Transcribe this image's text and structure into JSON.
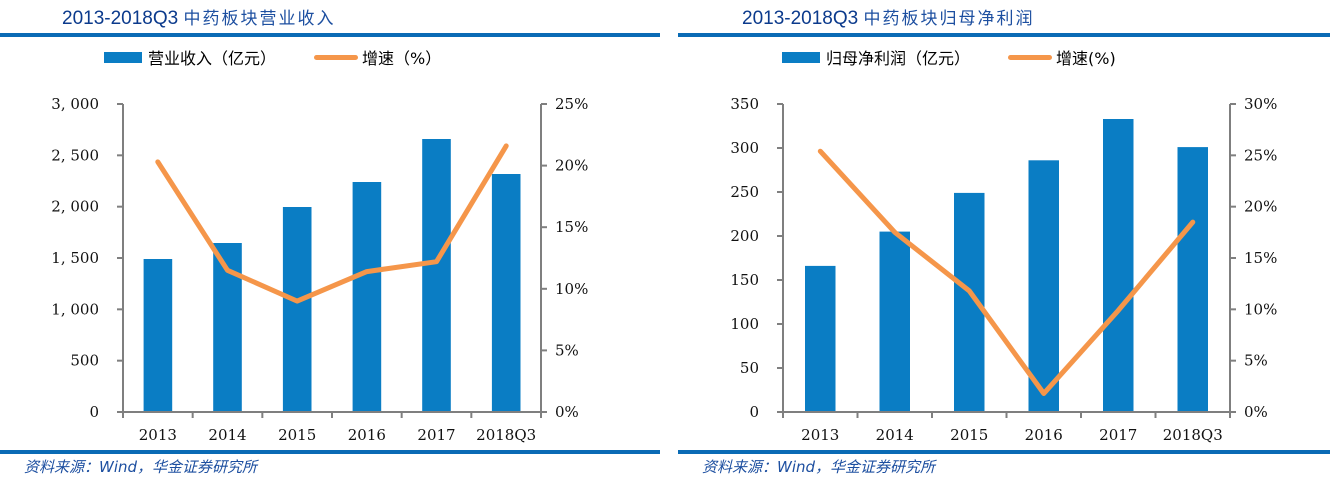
{
  "colors": {
    "bar": "#0a7dc4",
    "line": "#f5964a",
    "axis": "#7f7f7f",
    "rule": "#0a6bb5",
    "title": "#0b3a8c"
  },
  "chart_data": [
    {
      "type": "bar",
      "title_prefix": "2013-2018Q3",
      "title_cn": "中药板块营业收入",
      "categories": [
        "2013",
        "2014",
        "2015",
        "2016",
        "2017",
        "2018Q3"
      ],
      "series": [
        {
          "name": "营业收入（亿元）",
          "type": "bar",
          "axis": "left",
          "values": [
            1490,
            1646,
            1997,
            2240,
            2659,
            2318
          ]
        },
        {
          "name": "增速（%）",
          "type": "line",
          "axis": "right",
          "values": [
            20.3,
            11.5,
            9.0,
            11.4,
            12.2,
            21.6
          ]
        }
      ],
      "ylim": [
        0,
        3000
      ],
      "yticks": [
        "0",
        "500",
        "1, 000",
        "1, 500",
        "2, 000",
        "2, 500",
        "3, 000"
      ],
      "y2lim": [
        0,
        25
      ],
      "y2ticks": [
        "0%",
        "5%",
        "10%",
        "15%",
        "20%",
        "25%"
      ],
      "legend_position": "top",
      "grid": false,
      "source": "资料来源：Wind，华金证券研究所"
    },
    {
      "type": "bar",
      "title_prefix": "2013-2018Q3",
      "title_cn": "中药板块归母净利润",
      "categories": [
        "2013",
        "2014",
        "2015",
        "2016",
        "2017",
        "2018Q3"
      ],
      "series": [
        {
          "name": "归母净利润（亿元）",
          "type": "bar",
          "axis": "left",
          "values": [
            166,
            205,
            249,
            286,
            333,
            301
          ]
        },
        {
          "name": "增速(%)",
          "type": "line",
          "axis": "right",
          "values": [
            25.4,
            17.5,
            11.8,
            1.8,
            9.9,
            18.5
          ]
        }
      ],
      "ylim": [
        0,
        350
      ],
      "yticks": [
        "0",
        "50",
        "100",
        "150",
        "200",
        "250",
        "300",
        "350"
      ],
      "y2lim": [
        0,
        30
      ],
      "y2ticks": [
        "0%",
        "5%",
        "10%",
        "15%",
        "20%",
        "25%",
        "30%"
      ],
      "legend_position": "top",
      "grid": false,
      "source": "资料来源：Wind，华金证券研究所"
    }
  ]
}
